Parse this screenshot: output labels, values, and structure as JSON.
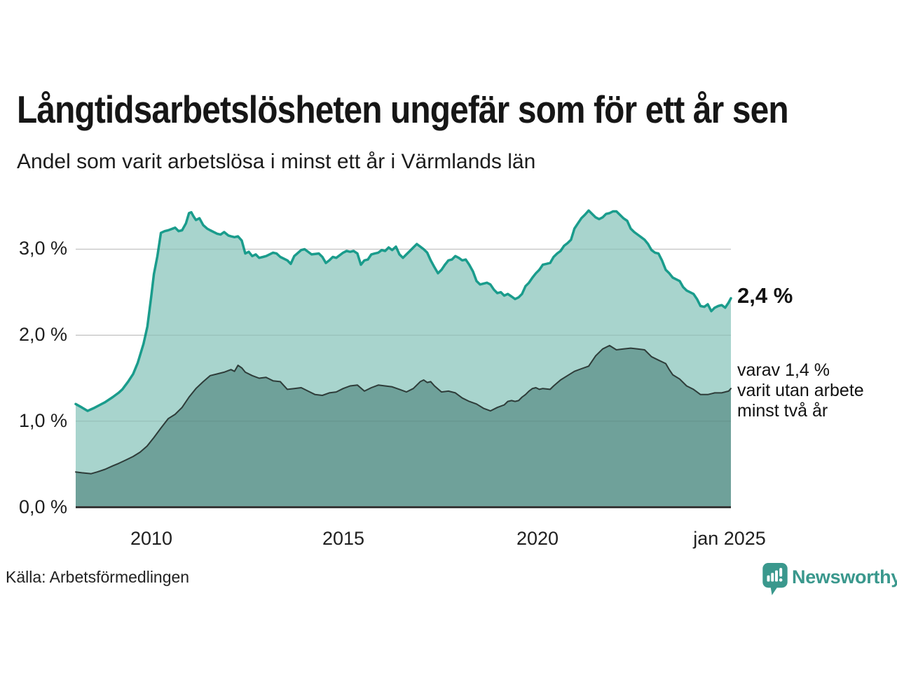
{
  "header": {
    "title": "Långtidsarbetslösheten ungefär som för ett år sen",
    "subtitle": "Andel som varit arbetslösa i minst ett år i Värmlands län"
  },
  "source": {
    "label": "Källa: Arbetsförmedlingen"
  },
  "branding": {
    "name": "Newsworthy",
    "color": "#3a988d",
    "icon": "newsworthy-speech-bubble-bar-chart-icon"
  },
  "chart_data": {
    "type": "area",
    "title": "Långtidsarbetslösheten ungefär som för ett år sen",
    "ylabel": "",
    "xlabel": "",
    "x_domain": [
      2008.04,
      2025.04
    ],
    "ylim": [
      0,
      3.6
    ],
    "grid": "horizontal",
    "grid_values": [
      1.0,
      2.0,
      3.0
    ],
    "grid_color": "#d7d7d7",
    "axis_color": "#373737",
    "legend": "none",
    "ytick_labels": [
      "3,0 %",
      "2,0 %",
      "1,0 %",
      "0,0 %"
    ],
    "ytick_values": [
      3.0,
      2.0,
      1.0,
      0.0
    ],
    "xtick_labels": [
      "2010",
      "2015",
      "2020",
      "jan 2025"
    ],
    "xtick_values": [
      2010,
      2015,
      2020,
      2025.04
    ],
    "annotations": {
      "latest_total": "2,4 %",
      "secondary_lines": [
        "varav 1,4 %",
        "varit utan arbete",
        "minst två år"
      ]
    },
    "series": [
      {
        "name": "Andel som varit arbetslösa minst ett år",
        "stroke": "#1a9c8c",
        "stroke_width": 3.5,
        "fill": "#9ecfc8",
        "fill_opacity": 0.9,
        "latest_value": 2.4,
        "points": [
          [
            2008.04,
            1.2
          ],
          [
            2008.2,
            1.16
          ],
          [
            2008.35,
            1.12
          ],
          [
            2008.5,
            1.15
          ],
          [
            2008.67,
            1.19
          ],
          [
            2008.8,
            1.22
          ],
          [
            2009.0,
            1.28
          ],
          [
            2009.15,
            1.33
          ],
          [
            2009.25,
            1.37
          ],
          [
            2009.4,
            1.46
          ],
          [
            2009.53,
            1.55
          ],
          [
            2009.65,
            1.68
          ],
          [
            2009.8,
            1.9
          ],
          [
            2009.9,
            2.1
          ],
          [
            2010.0,
            2.45
          ],
          [
            2010.07,
            2.71
          ],
          [
            2010.16,
            2.92
          ],
          [
            2010.25,
            3.19
          ],
          [
            2010.35,
            3.21
          ],
          [
            2010.44,
            3.22
          ],
          [
            2010.62,
            3.25
          ],
          [
            2010.71,
            3.21
          ],
          [
            2010.8,
            3.22
          ],
          [
            2010.9,
            3.3
          ],
          [
            2010.98,
            3.42
          ],
          [
            2011.04,
            3.43
          ],
          [
            2011.1,
            3.38
          ],
          [
            2011.16,
            3.34
          ],
          [
            2011.25,
            3.36
          ],
          [
            2011.35,
            3.28
          ],
          [
            2011.45,
            3.24
          ],
          [
            2011.53,
            3.22
          ],
          [
            2011.71,
            3.18
          ],
          [
            2011.8,
            3.17
          ],
          [
            2011.89,
            3.2
          ],
          [
            2012.0,
            3.16
          ],
          [
            2012.07,
            3.15
          ],
          [
            2012.16,
            3.14
          ],
          [
            2012.25,
            3.15
          ],
          [
            2012.35,
            3.1
          ],
          [
            2012.44,
            2.95
          ],
          [
            2012.53,
            2.97
          ],
          [
            2012.62,
            2.92
          ],
          [
            2012.71,
            2.94
          ],
          [
            2012.8,
            2.9
          ],
          [
            2012.9,
            2.91
          ],
          [
            2012.98,
            2.92
          ],
          [
            2013.16,
            2.96
          ],
          [
            2013.25,
            2.95
          ],
          [
            2013.35,
            2.91
          ],
          [
            2013.53,
            2.87
          ],
          [
            2013.62,
            2.83
          ],
          [
            2013.71,
            2.92
          ],
          [
            2013.89,
            2.99
          ],
          [
            2013.98,
            3.0
          ],
          [
            2014.16,
            2.94
          ],
          [
            2014.35,
            2.95
          ],
          [
            2014.44,
            2.91
          ],
          [
            2014.53,
            2.84
          ],
          [
            2014.62,
            2.87
          ],
          [
            2014.71,
            2.91
          ],
          [
            2014.8,
            2.9
          ],
          [
            2014.98,
            2.96
          ],
          [
            2015.07,
            2.98
          ],
          [
            2015.16,
            2.97
          ],
          [
            2015.25,
            2.98
          ],
          [
            2015.35,
            2.95
          ],
          [
            2015.44,
            2.82
          ],
          [
            2015.53,
            2.87
          ],
          [
            2015.62,
            2.88
          ],
          [
            2015.71,
            2.94
          ],
          [
            2015.8,
            2.95
          ],
          [
            2015.89,
            2.96
          ],
          [
            2015.98,
            2.99
          ],
          [
            2016.07,
            2.98
          ],
          [
            2016.16,
            3.02
          ],
          [
            2016.25,
            2.99
          ],
          [
            2016.35,
            3.03
          ],
          [
            2016.44,
            2.94
          ],
          [
            2016.53,
            2.9
          ],
          [
            2016.62,
            2.94
          ],
          [
            2016.71,
            2.98
          ],
          [
            2016.8,
            3.02
          ],
          [
            2016.89,
            3.06
          ],
          [
            2016.98,
            3.03
          ],
          [
            2017.07,
            3.0
          ],
          [
            2017.16,
            2.96
          ],
          [
            2017.25,
            2.87
          ],
          [
            2017.35,
            2.79
          ],
          [
            2017.44,
            2.72
          ],
          [
            2017.53,
            2.76
          ],
          [
            2017.62,
            2.82
          ],
          [
            2017.71,
            2.87
          ],
          [
            2017.8,
            2.88
          ],
          [
            2017.89,
            2.92
          ],
          [
            2017.98,
            2.9
          ],
          [
            2018.07,
            2.87
          ],
          [
            2018.16,
            2.88
          ],
          [
            2018.25,
            2.82
          ],
          [
            2018.35,
            2.74
          ],
          [
            2018.44,
            2.63
          ],
          [
            2018.53,
            2.59
          ],
          [
            2018.62,
            2.6
          ],
          [
            2018.71,
            2.61
          ],
          [
            2018.8,
            2.59
          ],
          [
            2018.89,
            2.53
          ],
          [
            2018.98,
            2.49
          ],
          [
            2019.07,
            2.5
          ],
          [
            2019.16,
            2.46
          ],
          [
            2019.25,
            2.48
          ],
          [
            2019.35,
            2.45
          ],
          [
            2019.44,
            2.42
          ],
          [
            2019.53,
            2.44
          ],
          [
            2019.62,
            2.48
          ],
          [
            2019.71,
            2.57
          ],
          [
            2019.8,
            2.61
          ],
          [
            2019.89,
            2.67
          ],
          [
            2019.98,
            2.72
          ],
          [
            2020.07,
            2.76
          ],
          [
            2020.16,
            2.82
          ],
          [
            2020.25,
            2.83
          ],
          [
            2020.35,
            2.84
          ],
          [
            2020.44,
            2.91
          ],
          [
            2020.53,
            2.95
          ],
          [
            2020.62,
            2.98
          ],
          [
            2020.71,
            3.04
          ],
          [
            2020.8,
            3.07
          ],
          [
            2020.89,
            3.11
          ],
          [
            2020.98,
            3.24
          ],
          [
            2021.07,
            3.3
          ],
          [
            2021.16,
            3.36
          ],
          [
            2021.25,
            3.4
          ],
          [
            2021.35,
            3.45
          ],
          [
            2021.44,
            3.41
          ],
          [
            2021.53,
            3.37
          ],
          [
            2021.62,
            3.35
          ],
          [
            2021.71,
            3.37
          ],
          [
            2021.8,
            3.41
          ],
          [
            2021.89,
            3.42
          ],
          [
            2021.98,
            3.44
          ],
          [
            2022.07,
            3.44
          ],
          [
            2022.16,
            3.4
          ],
          [
            2022.25,
            3.36
          ],
          [
            2022.35,
            3.33
          ],
          [
            2022.44,
            3.24
          ],
          [
            2022.53,
            3.2
          ],
          [
            2022.62,
            3.17
          ],
          [
            2022.71,
            3.14
          ],
          [
            2022.8,
            3.11
          ],
          [
            2022.89,
            3.06
          ],
          [
            2022.98,
            2.99
          ],
          [
            2023.07,
            2.96
          ],
          [
            2023.16,
            2.95
          ],
          [
            2023.25,
            2.87
          ],
          [
            2023.35,
            2.76
          ],
          [
            2023.44,
            2.72
          ],
          [
            2023.53,
            2.67
          ],
          [
            2023.62,
            2.65
          ],
          [
            2023.71,
            2.63
          ],
          [
            2023.8,
            2.56
          ],
          [
            2023.89,
            2.52
          ],
          [
            2023.98,
            2.5
          ],
          [
            2024.07,
            2.48
          ],
          [
            2024.16,
            2.42
          ],
          [
            2024.25,
            2.34
          ],
          [
            2024.35,
            2.33
          ],
          [
            2024.44,
            2.36
          ],
          [
            2024.53,
            2.28
          ],
          [
            2024.62,
            2.32
          ],
          [
            2024.71,
            2.34
          ],
          [
            2024.8,
            2.35
          ],
          [
            2024.89,
            2.32
          ],
          [
            2024.98,
            2.38
          ],
          [
            2025.04,
            2.43
          ]
        ]
      },
      {
        "name": "varav utan arbete minst två år",
        "stroke": "#2e3c39",
        "stroke_width": 2,
        "fill": "#6fa19a",
        "fill_opacity": 1,
        "latest_value": 1.4,
        "points": [
          [
            2008.04,
            0.41
          ],
          [
            2008.2,
            0.4
          ],
          [
            2008.44,
            0.39
          ],
          [
            2008.6,
            0.41
          ],
          [
            2008.8,
            0.44
          ],
          [
            2009.0,
            0.48
          ],
          [
            2009.16,
            0.51
          ],
          [
            2009.35,
            0.55
          ],
          [
            2009.53,
            0.59
          ],
          [
            2009.71,
            0.64
          ],
          [
            2009.89,
            0.71
          ],
          [
            2010.07,
            0.81
          ],
          [
            2010.25,
            0.92
          ],
          [
            2010.44,
            1.03
          ],
          [
            2010.62,
            1.08
          ],
          [
            2010.8,
            1.16
          ],
          [
            2010.98,
            1.28
          ],
          [
            2011.16,
            1.38
          ],
          [
            2011.35,
            1.46
          ],
          [
            2011.53,
            1.53
          ],
          [
            2011.71,
            1.55
          ],
          [
            2011.89,
            1.57
          ],
          [
            2012.07,
            1.6
          ],
          [
            2012.16,
            1.58
          ],
          [
            2012.25,
            1.65
          ],
          [
            2012.35,
            1.62
          ],
          [
            2012.44,
            1.57
          ],
          [
            2012.62,
            1.53
          ],
          [
            2012.8,
            1.5
          ],
          [
            2012.98,
            1.51
          ],
          [
            2013.16,
            1.47
          ],
          [
            2013.35,
            1.46
          ],
          [
            2013.53,
            1.37
          ],
          [
            2013.71,
            1.38
          ],
          [
            2013.89,
            1.39
          ],
          [
            2014.07,
            1.35
          ],
          [
            2014.25,
            1.31
          ],
          [
            2014.44,
            1.3
          ],
          [
            2014.62,
            1.33
          ],
          [
            2014.8,
            1.34
          ],
          [
            2014.98,
            1.38
          ],
          [
            2015.16,
            1.41
          ],
          [
            2015.35,
            1.42
          ],
          [
            2015.53,
            1.35
          ],
          [
            2015.71,
            1.39
          ],
          [
            2015.89,
            1.42
          ],
          [
            2016.07,
            1.41
          ],
          [
            2016.25,
            1.4
          ],
          [
            2016.44,
            1.37
          ],
          [
            2016.62,
            1.34
          ],
          [
            2016.8,
            1.38
          ],
          [
            2016.98,
            1.46
          ],
          [
            2017.07,
            1.48
          ],
          [
            2017.16,
            1.45
          ],
          [
            2017.25,
            1.46
          ],
          [
            2017.35,
            1.41
          ],
          [
            2017.53,
            1.34
          ],
          [
            2017.71,
            1.35
          ],
          [
            2017.89,
            1.33
          ],
          [
            2018.07,
            1.27
          ],
          [
            2018.25,
            1.23
          ],
          [
            2018.44,
            1.2
          ],
          [
            2018.62,
            1.15
          ],
          [
            2018.8,
            1.12
          ],
          [
            2018.98,
            1.16
          ],
          [
            2019.16,
            1.19
          ],
          [
            2019.25,
            1.23
          ],
          [
            2019.35,
            1.24
          ],
          [
            2019.44,
            1.23
          ],
          [
            2019.53,
            1.24
          ],
          [
            2019.62,
            1.28
          ],
          [
            2019.71,
            1.31
          ],
          [
            2019.8,
            1.35
          ],
          [
            2019.89,
            1.38
          ],
          [
            2019.98,
            1.39
          ],
          [
            2020.07,
            1.37
          ],
          [
            2020.16,
            1.38
          ],
          [
            2020.35,
            1.37
          ],
          [
            2020.44,
            1.41
          ],
          [
            2020.62,
            1.48
          ],
          [
            2020.8,
            1.53
          ],
          [
            2020.98,
            1.58
          ],
          [
            2021.16,
            1.61
          ],
          [
            2021.35,
            1.64
          ],
          [
            2021.53,
            1.76
          ],
          [
            2021.71,
            1.84
          ],
          [
            2021.89,
            1.88
          ],
          [
            2022.07,
            1.83
          ],
          [
            2022.25,
            1.84
          ],
          [
            2022.44,
            1.85
          ],
          [
            2022.62,
            1.84
          ],
          [
            2022.8,
            1.83
          ],
          [
            2022.98,
            1.75
          ],
          [
            2023.16,
            1.71
          ],
          [
            2023.35,
            1.67
          ],
          [
            2023.44,
            1.6
          ],
          [
            2023.53,
            1.54
          ],
          [
            2023.71,
            1.49
          ],
          [
            2023.89,
            1.41
          ],
          [
            2024.07,
            1.37
          ],
          [
            2024.25,
            1.31
          ],
          [
            2024.44,
            1.31
          ],
          [
            2024.62,
            1.33
          ],
          [
            2024.8,
            1.33
          ],
          [
            2024.98,
            1.35
          ],
          [
            2025.04,
            1.38
          ]
        ]
      }
    ]
  }
}
